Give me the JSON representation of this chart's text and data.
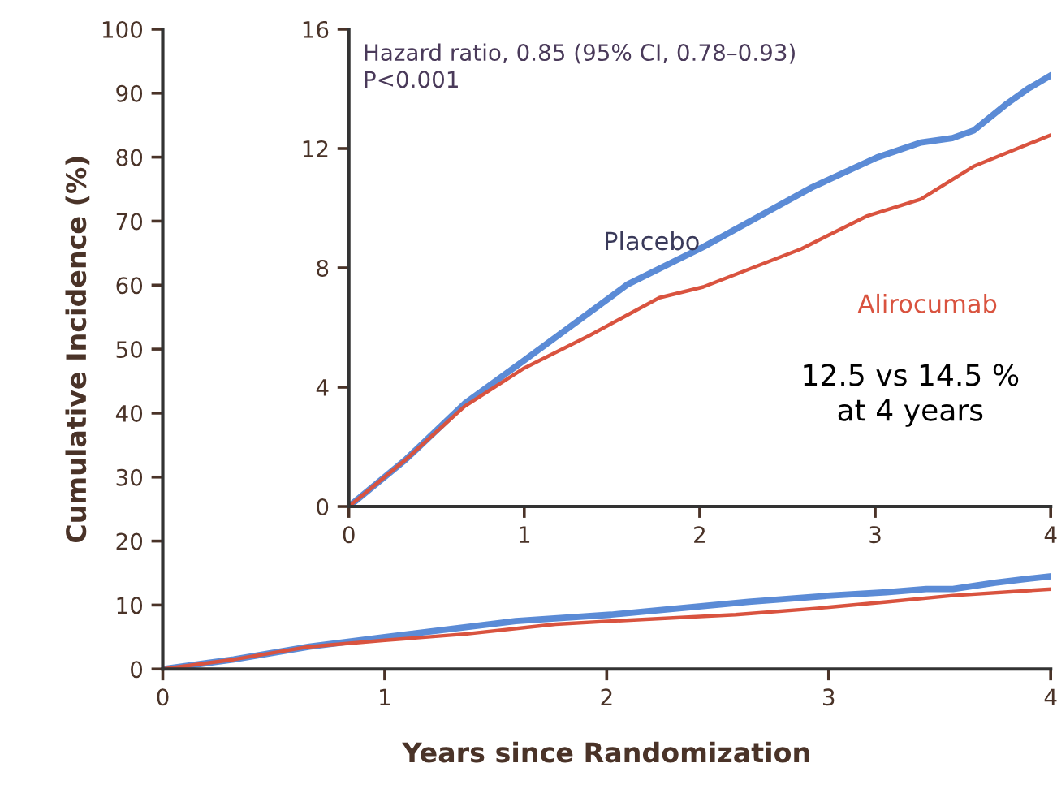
{
  "chart_data": [
    {
      "type": "line",
      "xlabel": "Years since Randomization",
      "ylabel": "Cumulative Incidence (%)",
      "xlim": [
        0,
        4
      ],
      "xticks": [
        0,
        1,
        2,
        3,
        4
      ],
      "ylim": [
        0,
        100
      ],
      "yticks": [
        0,
        10,
        20,
        30,
        40,
        50,
        60,
        70,
        80,
        90,
        100
      ],
      "grid": false,
      "legend": false,
      "marker": "none",
      "line_style": "solid",
      "series": [
        {
          "color": "#5b8bd6",
          "x": [
            0,
            0.32,
            0.66,
            1.0,
            1.59,
            2.02,
            2.64,
            3.01,
            3.26,
            3.44,
            3.56,
            3.75,
            3.87,
            4.0
          ],
          "values": [
            0,
            1.5,
            3.5,
            5,
            7.5,
            8.5,
            10.5,
            11.5,
            12,
            12.5,
            12.5,
            13.5,
            14,
            14.5
          ]
        },
        {
          "color": "#d9533f",
          "x": [
            0,
            0.32,
            0.66,
            1.0,
            1.37,
            1.77,
            2.02,
            2.58,
            2.95,
            3.26,
            3.56,
            4.0
          ],
          "values": [
            0,
            1.5,
            3.5,
            4.5,
            5.5,
            7,
            7.5,
            8.5,
            9.5,
            10.5,
            11.5,
            12.5
          ]
        }
      ]
    },
    {
      "type": "line",
      "xlim": [
        0,
        4
      ],
      "xticks": [
        0,
        1,
        2,
        3,
        4
      ],
      "ylim": [
        0,
        16
      ],
      "yticks": [
        0,
        4,
        8,
        12,
        16
      ],
      "grid": false,
      "legend": false,
      "marker": "none",
      "line_style": "solid",
      "annotations": [
        "Hazard ratio, 0.85 (95% CI, 0.78–0.93)\nP<0.001",
        "12.5 vs 14.5 %\nat 4 years"
      ],
      "series": [
        {
          "name": "Placebo",
          "color": "#5b8bd6",
          "x": [
            0,
            0.32,
            0.66,
            1.0,
            1.59,
            2.02,
            2.64,
            3.01,
            3.26,
            3.44,
            3.56,
            3.75,
            3.87,
            4.0
          ],
          "values": [
            0,
            1.55,
            3.45,
            4.9,
            7.45,
            8.7,
            10.7,
            11.7,
            12.2,
            12.35,
            12.6,
            13.5,
            14.0,
            14.45
          ]
        },
        {
          "name": "Alirocumab",
          "color": "#d9533f",
          "x": [
            0,
            0.32,
            0.66,
            1.0,
            1.37,
            1.77,
            2.02,
            2.58,
            2.95,
            3.26,
            3.56,
            4.0
          ],
          "values": [
            0,
            1.55,
            3.36,
            4.64,
            5.73,
            7.0,
            7.36,
            8.64,
            9.73,
            10.3,
            11.4,
            12.45
          ]
        }
      ]
    }
  ]
}
